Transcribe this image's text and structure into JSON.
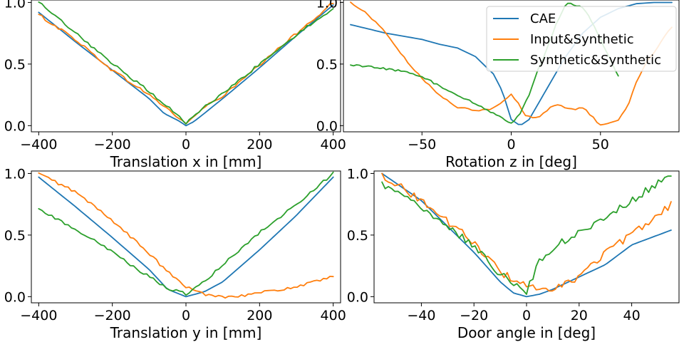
{
  "colors": {
    "CAE": "#1f77b4",
    "Input&Synthetic": "#ff7f0e",
    "Synthetic&Synthetic": "#2ca02c"
  },
  "chart_data": [
    {
      "type": "line",
      "xlabel": "Translation x in [mm]",
      "xlim": [
        -420,
        420
      ],
      "ylim": [
        -0.05,
        1.02
      ],
      "xticks": [
        -400,
        -200,
        0,
        200,
        400
      ],
      "xtick_labels": [
        "−400",
        "−200",
        "0",
        "200",
        "400"
      ],
      "yticks": [
        0.0,
        0.5,
        1.0
      ],
      "ytick_labels": [
        "0.0",
        "0.5",
        "1.0"
      ],
      "legend": false,
      "noise": 0.012,
      "series": [
        {
          "name": "CAE",
          "x": [
            -400,
            -300,
            -200,
            -100,
            -60,
            -20,
            0,
            20,
            50,
            100,
            200,
            300,
            400
          ],
          "y": [
            0.92,
            0.68,
            0.45,
            0.22,
            0.1,
            0.04,
            0.0,
            0.03,
            0.1,
            0.22,
            0.47,
            0.73,
            0.98
          ]
        },
        {
          "name": "Input&Synthetic",
          "x": [
            -400,
            -300,
            -200,
            -100,
            -60,
            -20,
            0,
            20,
            50,
            100,
            200,
            300,
            400
          ],
          "y": [
            0.9,
            0.7,
            0.45,
            0.25,
            0.16,
            0.06,
            0.02,
            0.07,
            0.15,
            0.24,
            0.49,
            0.75,
            1.0
          ]
        },
        {
          "name": "Synthetic&Synthetic",
          "x": [
            -400,
            -300,
            -200,
            -100,
            -60,
            -20,
            0,
            20,
            50,
            100,
            200,
            300,
            400
          ],
          "y": [
            1.0,
            0.75,
            0.5,
            0.28,
            0.18,
            0.08,
            0.02,
            0.07,
            0.15,
            0.26,
            0.5,
            0.74,
            0.95
          ]
        }
      ]
    },
    {
      "type": "line",
      "xlabel": "Rotation z in [deg]",
      "xlim": [
        -94,
        94
      ],
      "ylim": [
        -0.05,
        1.02
      ],
      "xticks": [
        -50,
        0,
        50
      ],
      "xtick_labels": [
        "−50",
        "0",
        "50"
      ],
      "yticks": [
        0.0,
        0.5,
        1.0
      ],
      "ytick_labels": [
        "0.0",
        "0.5",
        "1.0"
      ],
      "legend": true,
      "legend_entries": [
        "CAE",
        "Input&Synthetic",
        "Synthetic&Synthetic"
      ],
      "noise": 0.008,
      "series": [
        {
          "name": "CAE",
          "x": [
            -90,
            -70,
            -50,
            -40,
            -30,
            -20,
            -10,
            -5,
            0,
            5,
            10,
            20,
            30,
            40,
            50,
            60,
            70,
            80,
            90
          ],
          "y": [
            0.82,
            0.75,
            0.7,
            0.66,
            0.63,
            0.56,
            0.42,
            0.28,
            0.05,
            0.0,
            0.05,
            0.3,
            0.55,
            0.75,
            0.88,
            0.95,
            0.99,
            1.0,
            1.0
          ]
        },
        {
          "name": "Input&Synthetic",
          "x": [
            -90,
            -80,
            -70,
            -60,
            -50,
            -40,
            -30,
            -20,
            -10,
            -5,
            0,
            3,
            8,
            15,
            20,
            25,
            30,
            35,
            40,
            45,
            50,
            55,
            60,
            65,
            70,
            75,
            80,
            85,
            90
          ],
          "y": [
            1.0,
            0.9,
            0.75,
            0.55,
            0.38,
            0.25,
            0.15,
            0.12,
            0.14,
            0.2,
            0.26,
            0.2,
            0.08,
            0.06,
            0.12,
            0.18,
            0.15,
            0.13,
            0.15,
            0.08,
            0.0,
            0.02,
            0.05,
            0.15,
            0.35,
            0.5,
            0.6,
            0.7,
            0.8
          ]
        },
        {
          "name": "Synthetic&Synthetic",
          "x": [
            -90,
            -80,
            -70,
            -60,
            -50,
            -40,
            -30,
            -20,
            -10,
            -5,
            0,
            5,
            10,
            15,
            20,
            25,
            30,
            33,
            36,
            40,
            45,
            50,
            55,
            60
          ],
          "y": [
            0.49,
            0.48,
            0.46,
            0.44,
            0.4,
            0.32,
            0.24,
            0.18,
            0.1,
            0.06,
            0.02,
            0.1,
            0.25,
            0.45,
            0.62,
            0.82,
            0.97,
            1.0,
            0.97,
            0.96,
            0.85,
            0.7,
            0.55,
            0.4
          ]
        }
      ]
    },
    {
      "type": "line",
      "xlabel": "Translation y in [mm]",
      "xlim": [
        -420,
        420
      ],
      "ylim": [
        -0.05,
        1.02
      ],
      "xticks": [
        -400,
        -200,
        0,
        200,
        400
      ],
      "xtick_labels": [
        "−400",
        "−200",
        "0",
        "200",
        "400"
      ],
      "yticks": [
        0.0,
        0.5,
        1.0
      ],
      "ytick_labels": [
        "0.0",
        "0.5",
        "1.0"
      ],
      "legend": false,
      "noise": 0.012,
      "series": [
        {
          "name": "CAE",
          "x": [
            -400,
            -300,
            -200,
            -100,
            -50,
            0,
            50,
            100,
            200,
            300,
            400
          ],
          "y": [
            0.97,
            0.73,
            0.48,
            0.22,
            0.06,
            0.0,
            0.04,
            0.12,
            0.38,
            0.66,
            0.97
          ]
        },
        {
          "name": "Input&Synthetic",
          "x": [
            -400,
            -300,
            -200,
            -100,
            -50,
            0,
            50,
            100,
            150,
            200,
            300,
            400
          ],
          "y": [
            1.0,
            0.85,
            0.62,
            0.35,
            0.2,
            0.08,
            0.02,
            0.0,
            0.01,
            0.03,
            0.08,
            0.16
          ]
        },
        {
          "name": "Synthetic&Synthetic",
          "x": [
            -400,
            -300,
            -200,
            -100,
            -50,
            0,
            50,
            100,
            200,
            300,
            400
          ],
          "y": [
            0.71,
            0.55,
            0.36,
            0.16,
            0.07,
            0.02,
            0.12,
            0.26,
            0.52,
            0.75,
            1.0
          ]
        }
      ]
    },
    {
      "type": "line",
      "xlabel": "Door angle in [deg]",
      "xlim": [
        -58,
        58
      ],
      "ylim": [
        -0.05,
        1.02
      ],
      "xticks": [
        -40,
        -20,
        0,
        20,
        40
      ],
      "xtick_labels": [
        "−40",
        "−20",
        "0",
        "20",
        "40"
      ],
      "yticks": [
        0.0,
        0.5,
        1.0
      ],
      "ytick_labels": [
        "0.0",
        "0.5",
        "1.0"
      ],
      "legend": false,
      "noise": 0.03,
      "series": [
        {
          "name": "CAE",
          "x": [
            -55,
            -40,
            -20,
            -10,
            -5,
            0,
            5,
            10,
            20,
            30,
            40,
            55
          ],
          "y": [
            1.0,
            0.78,
            0.36,
            0.12,
            0.03,
            0.0,
            0.02,
            0.06,
            0.16,
            0.26,
            0.42,
            0.54
          ]
        },
        {
          "name": "Input&Synthetic",
          "x": [
            -55,
            -40,
            -20,
            -10,
            -5,
            0,
            5,
            10,
            20,
            30,
            40,
            55
          ],
          "y": [
            0.99,
            0.78,
            0.44,
            0.2,
            0.14,
            0.1,
            0.04,
            0.05,
            0.16,
            0.36,
            0.5,
            0.75
          ]
        },
        {
          "name": "Synthetic&Synthetic",
          "x": [
            -55,
            -40,
            -20,
            -10,
            -5,
            0,
            5,
            10,
            20,
            30,
            40,
            55
          ],
          "y": [
            0.92,
            0.72,
            0.42,
            0.18,
            0.12,
            0.04,
            0.3,
            0.4,
            0.52,
            0.65,
            0.78,
            1.0
          ]
        }
      ]
    }
  ]
}
